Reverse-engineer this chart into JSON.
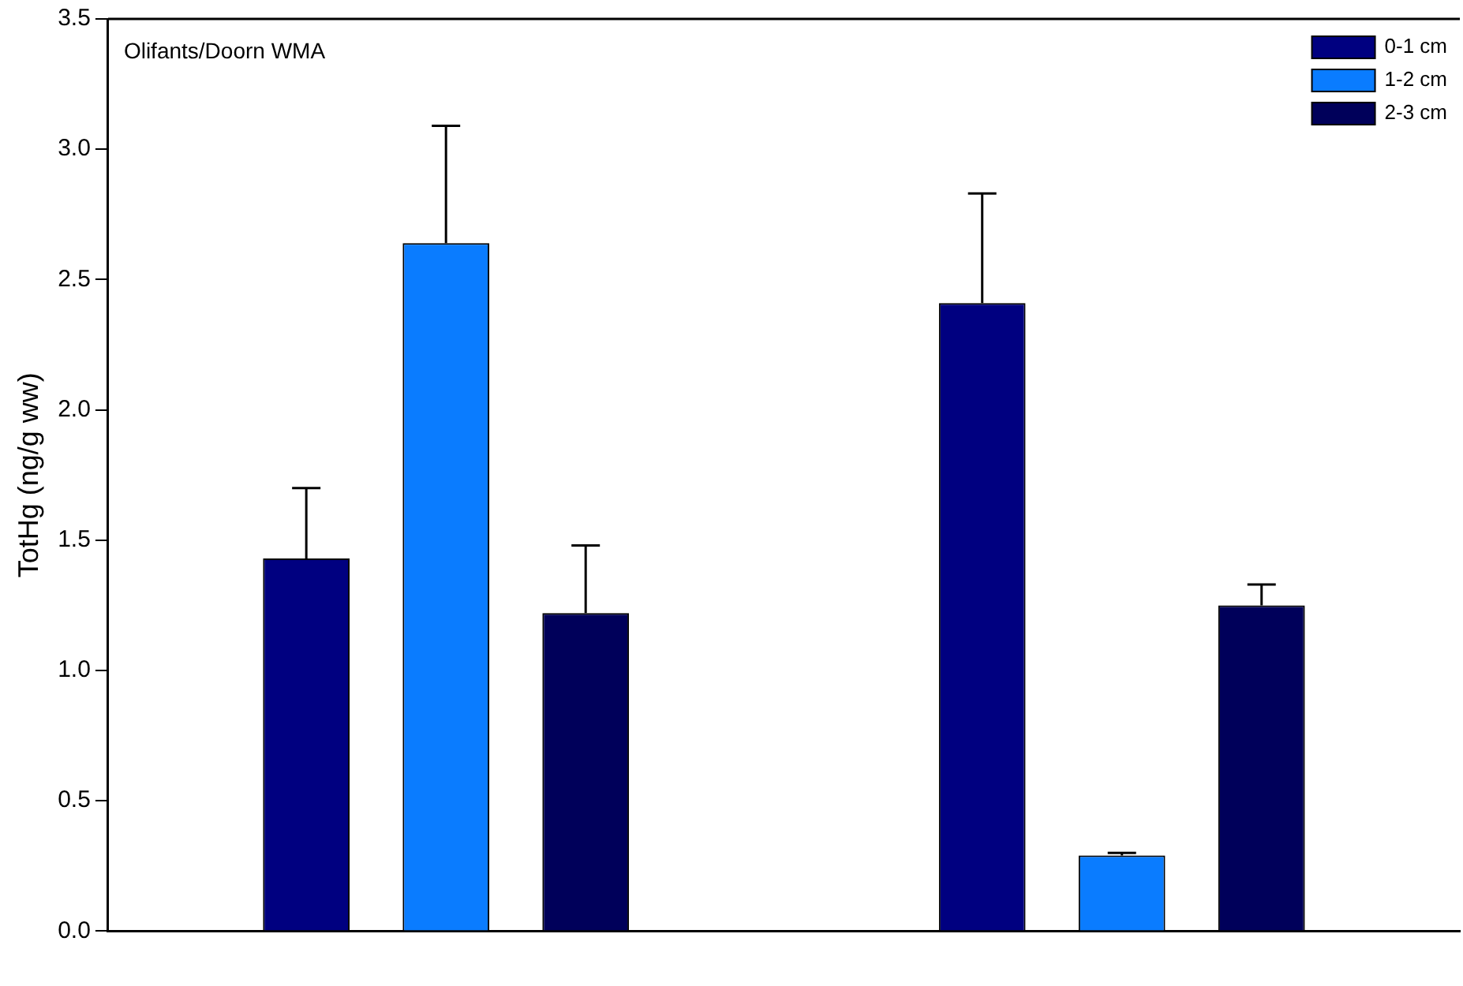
{
  "chart_data": {
    "type": "bar",
    "title": "Olifants/Doorn WMA",
    "ylabel": "TotHg (ng/g ww)",
    "categories": [
      null,
      null
    ],
    "series": [
      {
        "name": "0-1 cm",
        "color": "#000080",
        "values": [
          1.43,
          2.41
        ],
        "errors": [
          0.27,
          0.42
        ]
      },
      {
        "name": "1-2 cm",
        "color": "#0a7cff",
        "values": [
          2.64,
          0.29
        ],
        "errors": [
          0.45,
          0.01
        ]
      },
      {
        "name": "2-3 cm",
        "color": "#00005a",
        "values": [
          1.22,
          1.25
        ],
        "errors": [
          0.26,
          0.08
        ]
      }
    ],
    "ylim": [
      0,
      3.5
    ],
    "yticks": [
      {
        "value": 0,
        "label": "0.0"
      },
      0.5,
      {
        "value": 1,
        "label": "1.0"
      },
      1.5,
      {
        "value": 2,
        "label": "2.0"
      },
      2.5,
      {
        "value": 3,
        "label": "3.0"
      },
      3.5
    ],
    "grid": false,
    "legend": "top right"
  }
}
